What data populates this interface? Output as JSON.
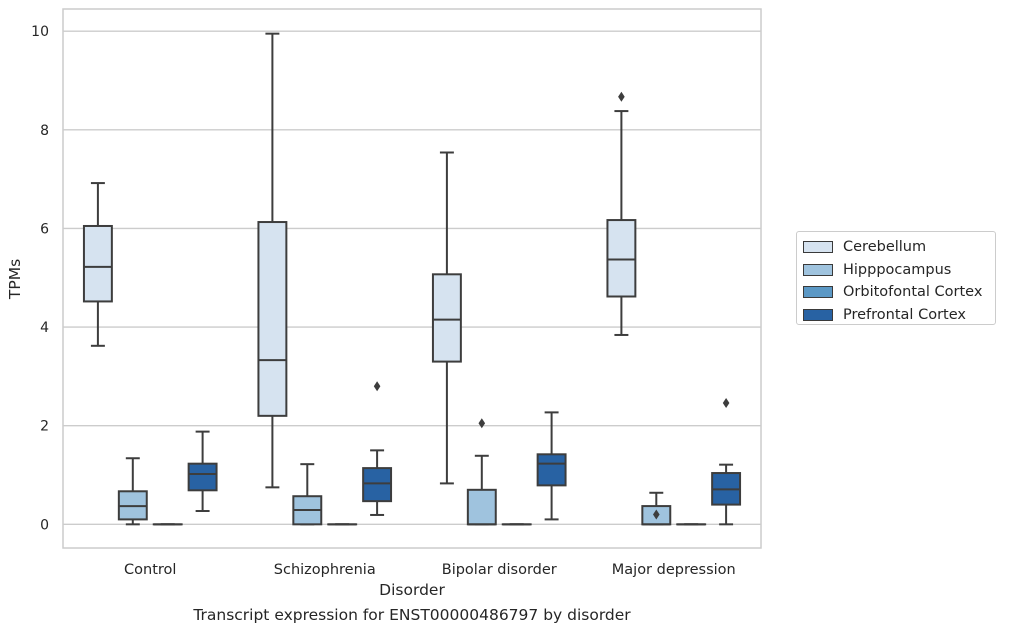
{
  "chart_data": {
    "type": "box",
    "title": "",
    "xlabel": "Disorder",
    "ylabel": "TPMs",
    "caption": "Transcript expression for ENST00000486797 by disorder",
    "categories": [
      "Control",
      "Schizophrenia",
      "Bipolar disorder",
      "Major depression"
    ],
    "ylim": [
      -0.48,
      10.45
    ],
    "yticks": [
      "0",
      "2",
      "4",
      "6",
      "8",
      "10"
    ],
    "grid": "horizontal",
    "legend_position": "right",
    "series": [
      {
        "name": "Cerebellum",
        "color": "#d6e3f0",
        "boxes": [
          {
            "whislo": 3.62,
            "q1": 4.52,
            "med": 5.22,
            "q3": 6.05,
            "whishi": 6.92,
            "fliers": []
          },
          {
            "whislo": 0.75,
            "q1": 2.2,
            "med": 3.33,
            "q3": 6.13,
            "whishi": 9.95,
            "fliers": []
          },
          {
            "whislo": 0.83,
            "q1": 3.3,
            "med": 4.15,
            "q3": 5.07,
            "whishi": 7.54,
            "fliers": []
          },
          {
            "whislo": 3.84,
            "q1": 4.62,
            "med": 5.37,
            "q3": 6.17,
            "whishi": 8.38,
            "fliers": [
              8.67
            ]
          }
        ]
      },
      {
        "name": "Hipppocampus",
        "color": "#9fc3de",
        "boxes": [
          {
            "whislo": 0.0,
            "q1": 0.1,
            "med": 0.37,
            "q3": 0.67,
            "whishi": 1.34,
            "fliers": []
          },
          {
            "whislo": 0.0,
            "q1": 0.0,
            "med": 0.29,
            "q3": 0.57,
            "whishi": 1.22,
            "fliers": []
          },
          {
            "whislo": 0.0,
            "q1": 0.0,
            "med": 0.0,
            "q3": 0.7,
            "whishi": 1.39,
            "fliers": [
              2.05
            ]
          },
          {
            "whislo": 0.0,
            "q1": 0.0,
            "med": 0.0,
            "q3": 0.37,
            "whishi": 0.64,
            "fliers": [
              0.2
            ]
          }
        ]
      },
      {
        "name": "Orbitofontal Cortex",
        "color": "#5b98c5",
        "boxes": [
          {
            "whislo": 0.0,
            "q1": 0.0,
            "med": 0.0,
            "q3": 0.0,
            "whishi": 0.0,
            "fliers": []
          },
          {
            "whislo": 0.0,
            "q1": 0.0,
            "med": 0.0,
            "q3": 0.0,
            "whishi": 0.0,
            "fliers": []
          },
          {
            "whislo": 0.0,
            "q1": 0.0,
            "med": 0.0,
            "q3": 0.0,
            "whishi": 0.0,
            "fliers": []
          },
          {
            "whislo": 0.0,
            "q1": 0.0,
            "med": 0.0,
            "q3": 0.0,
            "whishi": 0.0,
            "fliers": []
          }
        ]
      },
      {
        "name": "Prefrontal Cortex",
        "color": "#2862a3",
        "boxes": [
          {
            "whislo": 0.27,
            "q1": 0.69,
            "med": 1.02,
            "q3": 1.23,
            "whishi": 1.88,
            "fliers": []
          },
          {
            "whislo": 0.19,
            "q1": 0.47,
            "med": 0.83,
            "q3": 1.14,
            "whishi": 1.5,
            "fliers": [
              2.8
            ]
          },
          {
            "whislo": 0.1,
            "q1": 0.79,
            "med": 1.23,
            "q3": 1.42,
            "whishi": 2.27,
            "fliers": []
          },
          {
            "whislo": 0.0,
            "q1": 0.4,
            "med": 0.71,
            "q3": 1.04,
            "whishi": 1.21,
            "fliers": [
              2.46
            ]
          }
        ]
      }
    ]
  }
}
